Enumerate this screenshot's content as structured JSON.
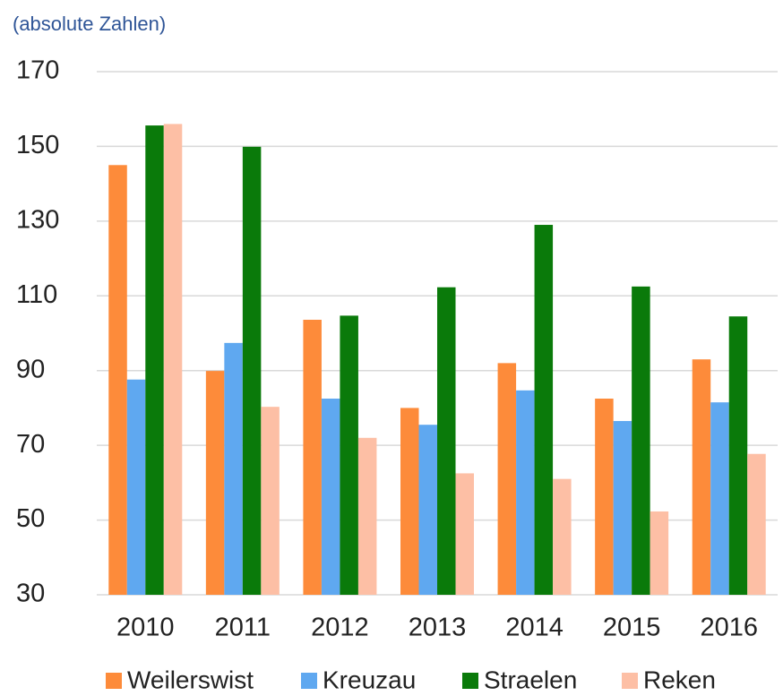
{
  "chart_data": {
    "type": "bar",
    "subtitle": "(absolute Zahlen)",
    "categories": [
      "2010",
      "2011",
      "2012",
      "2013",
      "2014",
      "2015",
      "2016"
    ],
    "series": [
      {
        "name": "Weilerswist",
        "color": "#fd8b3a",
        "values": [
          145,
          89.9,
          103.6,
          80,
          92,
          82.5,
          93
        ]
      },
      {
        "name": "Kreuzau",
        "color": "#5fa8f0",
        "values": [
          87.6,
          97.4,
          82.5,
          75.5,
          84.7,
          76.5,
          81.5
        ]
      },
      {
        "name": "Straelen",
        "color": "#0a7a0a",
        "values": [
          155.6,
          149.9,
          104.7,
          112.3,
          129,
          112.5,
          104.5
        ]
      },
      {
        "name": "Reken",
        "color": "#fdbfa5",
        "values": [
          156,
          80.3,
          72,
          62.5,
          61,
          52.3,
          67.7
        ]
      }
    ],
    "ylim": [
      30,
      170
    ],
    "yticks": [
      30,
      50,
      70,
      90,
      110,
      130,
      150,
      170
    ],
    "grid": true,
    "legend": "bottom"
  }
}
